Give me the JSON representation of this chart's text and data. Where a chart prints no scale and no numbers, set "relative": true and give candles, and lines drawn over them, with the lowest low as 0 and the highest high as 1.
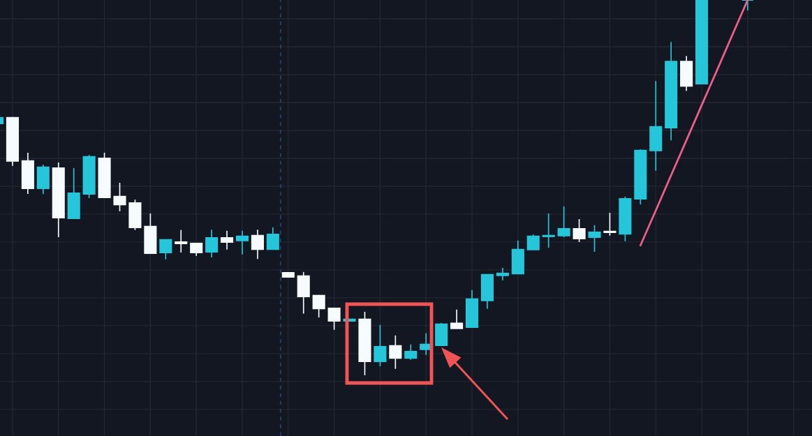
{
  "chart_data": {
    "type": "candlestick",
    "relative": true,
    "grid": true,
    "legend": false,
    "categories": [
      null,
      null,
      null,
      null,
      null,
      null,
      null,
      null,
      null,
      null,
      null,
      null,
      null,
      null,
      null,
      null,
      null,
      null,
      null,
      null,
      null,
      null,
      null,
      null,
      null,
      null,
      null,
      null,
      null,
      null,
      null,
      null,
      null,
      null,
      null,
      null,
      null,
      null,
      null,
      null,
      null,
      null,
      null,
      null,
      null,
      null,
      null,
      null,
      null,
      null
    ],
    "ohlc": [
      [
        0.671,
        0.686,
        0.671,
        0.686
      ],
      [
        0.686,
        0.688,
        0.558,
        0.571
      ],
      [
        0.571,
        0.593,
        0.483,
        0.498
      ],
      [
        0.498,
        0.561,
        0.483,
        0.554
      ],
      [
        0.552,
        0.567,
        0.368,
        0.42
      ],
      [
        0.418,
        0.552,
        0.418,
        0.485
      ],
      [
        0.483,
        0.587,
        0.472,
        0.582
      ],
      [
        0.578,
        0.593,
        0.474,
        0.474
      ],
      [
        0.476,
        0.513,
        0.437,
        0.455
      ],
      [
        0.459,
        0.468,
        0.387,
        0.394
      ],
      [
        0.396,
        0.431,
        0.325,
        0.325
      ],
      [
        0.327,
        0.362,
        0.309,
        0.361
      ],
      [
        0.355,
        0.387,
        0.327,
        0.351
      ],
      [
        0.351,
        0.353,
        0.318,
        0.327
      ],
      [
        0.329,
        0.388,
        0.314,
        0.366
      ],
      [
        0.366,
        0.385,
        0.335,
        0.355
      ],
      [
        0.359,
        0.385,
        0.322,
        0.37
      ],
      [
        0.372,
        0.388,
        0.31,
        0.336
      ],
      [
        0.336,
        0.394,
        0.336,
        0.375
      ],
      [
        0.273,
        0.273,
        0.262,
        0.262
      ],
      [
        0.264,
        0.275,
        0.164,
        0.21
      ],
      [
        0.212,
        0.214,
        0.154,
        0.178
      ],
      [
        0.178,
        0.18,
        0.121,
        0.145
      ],
      [
        0.145,
        0.149,
        0.145,
        0.149
      ],
      [
        0.149,
        0.169,
        0,
        0.037
      ],
      [
        0.037,
        0.134,
        0.024,
        0.076
      ],
      [
        0.078,
        0.106,
        0.017,
        0.046
      ],
      [
        0.046,
        0.082,
        0.041,
        0.063
      ],
      [
        0.069,
        0.112,
        0.054,
        0.082
      ],
      [
        0.08,
        0.139,
        0.08,
        0.136
      ],
      [
        0.138,
        0.175,
        0.125,
        0.125
      ],
      [
        0.128,
        0.227,
        0.128,
        0.203
      ],
      [
        0.199,
        0.268,
        0.177,
        0.268
      ],
      [
        0.266,
        0.286,
        0.253,
        0.271
      ],
      [
        0.271,
        0.359,
        0.271,
        0.335
      ],
      [
        0.335,
        0.375,
        0.335,
        0.37
      ],
      [
        0.37,
        0.431,
        0.34,
        0.372
      ],
      [
        0.372,
        0.45,
        0.368,
        0.39
      ],
      [
        0.39,
        0.416,
        0.355,
        0.364
      ],
      [
        0.368,
        0.4,
        0.329,
        0.381
      ],
      [
        0.383,
        0.433,
        0.372,
        0.381
      ],
      [
        0.377,
        0.476,
        0.357,
        0.47
      ],
      [
        0.47,
        0.602,
        0.455,
        0.599
      ],
      [
        0.599,
        0.784,
        0.545,
        0.662
      ],
      [
        0.66,
        0.888,
        0.626,
        0.836
      ],
      [
        0.836,
        0.851,
        0.758,
        0.771
      ],
      [
        0.777,
        1,
        0.777,
        1
      ],
      null,
      null,
      [
        1,
        1,
        0.972,
        1
      ]
    ],
    "colors": [
      "#26c6da",
      "#f5fbff",
      "#f5fbff",
      "#26c6da",
      "#f5fbff",
      "#26c6da",
      "#26c6da",
      "#f5fbff",
      "#f5fbff",
      "#f5fbff",
      "#f5fbff",
      "#26c6da",
      "#f5fbff",
      "#f5fbff",
      "#26c6da",
      "#f5fbff",
      "#26c6da",
      "#f5fbff",
      "#26c6da",
      "#f5fbff",
      "#f5fbff",
      "#f5fbff",
      "#f5fbff",
      "#26c6da",
      "#f5fbff",
      "#26c6da",
      "#f5fbff",
      "#26c6da",
      "#26c6da",
      "#26c6da",
      "#f5fbff",
      "#26c6da",
      "#26c6da",
      "#26c6da",
      "#26c6da",
      "#26c6da",
      "#26c6da",
      "#26c6da",
      "#f5fbff",
      "#26c6da",
      "#f5fbff",
      "#26c6da",
      "#26c6da",
      "#26c6da",
      "#26c6da",
      "#f5fbff",
      "#26c6da",
      null,
      null,
      "#26c6da"
    ],
    "series": [
      {
        "type": "line",
        "values": [
          null,
          null,
          null,
          null,
          null,
          null,
          null,
          null,
          null,
          null,
          null,
          null,
          null,
          null,
          null,
          null,
          null,
          null,
          null,
          null,
          null,
          null,
          null,
          null,
          null,
          null,
          null,
          null,
          null,
          null,
          null,
          null,
          null,
          null,
          null,
          null,
          null,
          null,
          null,
          null,
          null,
          null,
          0.346,
          0.439,
          0.533,
          0.626,
          0.72,
          0.813,
          0.907,
          1
        ],
        "color": "#ec5f8a"
      }
    ]
  }
}
